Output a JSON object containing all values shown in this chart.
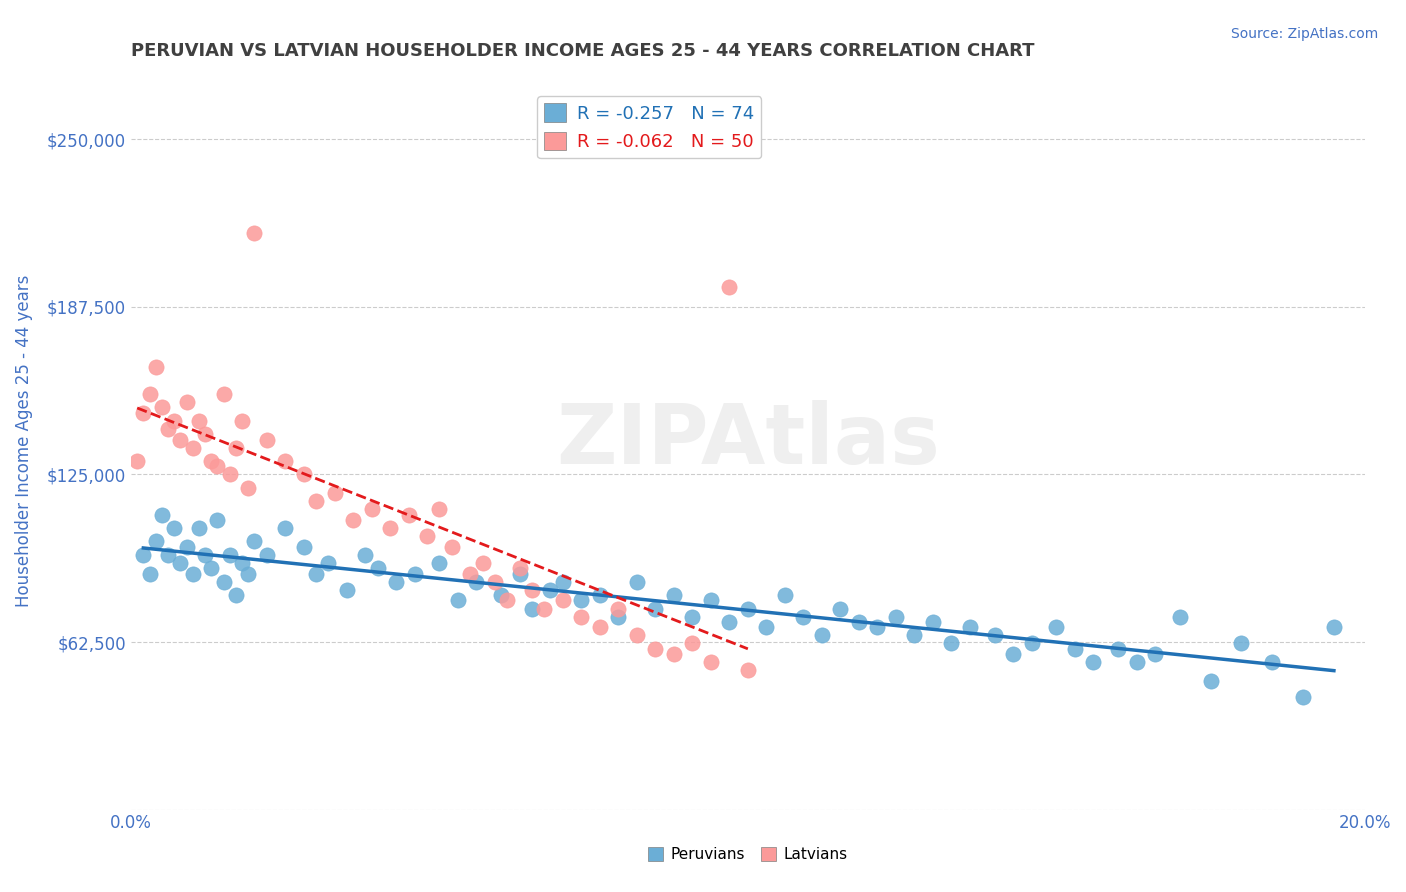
{
  "title": "PERUVIAN VS LATVIAN HOUSEHOLDER INCOME AGES 25 - 44 YEARS CORRELATION CHART",
  "source_text": "Source: ZipAtlas.com",
  "xlabel": "",
  "ylabel": "Householder Income Ages 25 - 44 years",
  "xlim": [
    0.0,
    0.2
  ],
  "ylim": [
    0,
    275000
  ],
  "yticks": [
    0,
    62500,
    125000,
    187500,
    250000
  ],
  "ytick_labels": [
    "",
    "$62,500",
    "$125,000",
    "$187,500",
    "$250,000"
  ],
  "xticks": [
    0.0,
    0.02,
    0.04,
    0.06,
    0.08,
    0.1,
    0.12,
    0.14,
    0.16,
    0.18,
    0.2
  ],
  "xtick_labels": [
    "0.0%",
    "",
    "",
    "",
    "",
    "",
    "",
    "",
    "",
    "",
    "20.0%"
  ],
  "peruvian_color": "#6baed6",
  "latvian_color": "#fb9a99",
  "peruvian_line_color": "#2171b5",
  "latvian_line_color": "#e31a1c",
  "legend_R_peruvian": "-0.257",
  "legend_N_peruvian": "74",
  "legend_R_latvian": "-0.062",
  "legend_N_latvian": "50",
  "watermark": "ZIPAtlas",
  "watermark_color": "#c0c0c0",
  "background_color": "#ffffff",
  "grid_color": "#cccccc",
  "axis_label_color": "#4472c4",
  "title_color": "#404040",
  "peruvian_scatter": [
    [
      0.002,
      95000
    ],
    [
      0.003,
      88000
    ],
    [
      0.004,
      100000
    ],
    [
      0.005,
      110000
    ],
    [
      0.006,
      95000
    ],
    [
      0.007,
      105000
    ],
    [
      0.008,
      92000
    ],
    [
      0.009,
      98000
    ],
    [
      0.01,
      88000
    ],
    [
      0.011,
      105000
    ],
    [
      0.012,
      95000
    ],
    [
      0.013,
      90000
    ],
    [
      0.014,
      108000
    ],
    [
      0.015,
      85000
    ],
    [
      0.016,
      95000
    ],
    [
      0.017,
      80000
    ],
    [
      0.018,
      92000
    ],
    [
      0.019,
      88000
    ],
    [
      0.02,
      100000
    ],
    [
      0.022,
      95000
    ],
    [
      0.025,
      105000
    ],
    [
      0.028,
      98000
    ],
    [
      0.03,
      88000
    ],
    [
      0.032,
      92000
    ],
    [
      0.035,
      82000
    ],
    [
      0.038,
      95000
    ],
    [
      0.04,
      90000
    ],
    [
      0.043,
      85000
    ],
    [
      0.046,
      88000
    ],
    [
      0.05,
      92000
    ],
    [
      0.053,
      78000
    ],
    [
      0.056,
      85000
    ],
    [
      0.06,
      80000
    ],
    [
      0.063,
      88000
    ],
    [
      0.065,
      75000
    ],
    [
      0.068,
      82000
    ],
    [
      0.07,
      85000
    ],
    [
      0.073,
      78000
    ],
    [
      0.076,
      80000
    ],
    [
      0.079,
      72000
    ],
    [
      0.082,
      85000
    ],
    [
      0.085,
      75000
    ],
    [
      0.088,
      80000
    ],
    [
      0.091,
      72000
    ],
    [
      0.094,
      78000
    ],
    [
      0.097,
      70000
    ],
    [
      0.1,
      75000
    ],
    [
      0.103,
      68000
    ],
    [
      0.106,
      80000
    ],
    [
      0.109,
      72000
    ],
    [
      0.112,
      65000
    ],
    [
      0.115,
      75000
    ],
    [
      0.118,
      70000
    ],
    [
      0.121,
      68000
    ],
    [
      0.124,
      72000
    ],
    [
      0.127,
      65000
    ],
    [
      0.13,
      70000
    ],
    [
      0.133,
      62000
    ],
    [
      0.136,
      68000
    ],
    [
      0.14,
      65000
    ],
    [
      0.143,
      58000
    ],
    [
      0.146,
      62000
    ],
    [
      0.15,
      68000
    ],
    [
      0.153,
      60000
    ],
    [
      0.156,
      55000
    ],
    [
      0.16,
      60000
    ],
    [
      0.163,
      55000
    ],
    [
      0.166,
      58000
    ],
    [
      0.17,
      72000
    ],
    [
      0.175,
      48000
    ],
    [
      0.18,
      62000
    ],
    [
      0.185,
      55000
    ],
    [
      0.19,
      42000
    ],
    [
      0.195,
      68000
    ]
  ],
  "latvian_scatter": [
    [
      0.001,
      130000
    ],
    [
      0.002,
      148000
    ],
    [
      0.003,
      155000
    ],
    [
      0.004,
      165000
    ],
    [
      0.005,
      150000
    ],
    [
      0.006,
      142000
    ],
    [
      0.007,
      145000
    ],
    [
      0.008,
      138000
    ],
    [
      0.009,
      152000
    ],
    [
      0.01,
      135000
    ],
    [
      0.011,
      145000
    ],
    [
      0.012,
      140000
    ],
    [
      0.013,
      130000
    ],
    [
      0.014,
      128000
    ],
    [
      0.015,
      155000
    ],
    [
      0.016,
      125000
    ],
    [
      0.017,
      135000
    ],
    [
      0.018,
      145000
    ],
    [
      0.019,
      120000
    ],
    [
      0.02,
      215000
    ],
    [
      0.022,
      138000
    ],
    [
      0.025,
      130000
    ],
    [
      0.028,
      125000
    ],
    [
      0.03,
      115000
    ],
    [
      0.033,
      118000
    ],
    [
      0.036,
      108000
    ],
    [
      0.039,
      112000
    ],
    [
      0.042,
      105000
    ],
    [
      0.045,
      110000
    ],
    [
      0.048,
      102000
    ],
    [
      0.05,
      112000
    ],
    [
      0.052,
      98000
    ],
    [
      0.055,
      88000
    ],
    [
      0.057,
      92000
    ],
    [
      0.059,
      85000
    ],
    [
      0.061,
      78000
    ],
    [
      0.063,
      90000
    ],
    [
      0.065,
      82000
    ],
    [
      0.067,
      75000
    ],
    [
      0.07,
      78000
    ],
    [
      0.073,
      72000
    ],
    [
      0.076,
      68000
    ],
    [
      0.079,
      75000
    ],
    [
      0.082,
      65000
    ],
    [
      0.085,
      60000
    ],
    [
      0.088,
      58000
    ],
    [
      0.091,
      62000
    ],
    [
      0.094,
      55000
    ],
    [
      0.097,
      195000
    ],
    [
      0.1,
      52000
    ]
  ]
}
